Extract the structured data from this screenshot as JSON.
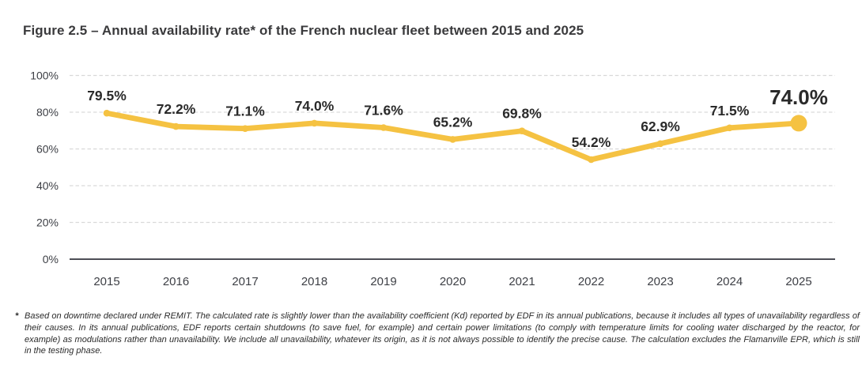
{
  "figure": {
    "title": "Figure 2.5 – Annual availability rate* of the French nuclear fleet between 2015 and 2025",
    "footnote_marker": "*",
    "footnote": "Based on downtime declared under REMIT. The calculated rate is slightly lower than the availability coefficient (Kd) reported by EDF in its annual publications, because it includes all types of unavailability regardless of their causes. In its annual publications, EDF reports certain shutdowns (to save fuel, for example) and certain power limitations (to comply with temperature limits for cooling water discharged by the reactor, for example) as modulations rather than unavailability. We include all unavailability, whatever its origin, as it is not always possible to identify the precise cause. The calculation excludes the Flamanville EPR, which is still in the testing phase."
  },
  "chart_data": {
    "type": "line",
    "title": "Annual availability rate of the French nuclear fleet between 2015 and 2025",
    "categories": [
      "2015",
      "2016",
      "2017",
      "2018",
      "2019",
      "2020",
      "2021",
      "2022",
      "2023",
      "2024",
      "2025"
    ],
    "values": [
      79.5,
      72.2,
      71.1,
      74.0,
      71.6,
      65.2,
      69.8,
      54.2,
      62.9,
      71.5,
      74.0
    ],
    "point_labels": [
      "79.5%",
      "72.2%",
      "71.1%",
      "74.0%",
      "71.6%",
      "65.2%",
      "69.8%",
      "54.2%",
      "62.9%",
      "71.5%",
      "74.0%"
    ],
    "y_ticks": [
      {
        "label": "0%",
        "value": 0
      },
      {
        "label": "20%",
        "value": 20
      },
      {
        "label": "40%",
        "value": 40
      },
      {
        "label": "60%",
        "value": 60
      },
      {
        "label": "80%",
        "value": 80
      },
      {
        "label": "100%",
        "value": 100
      }
    ],
    "ylim": [
      0,
      100
    ],
    "xlabel": "",
    "ylabel": "",
    "legend": "none",
    "grid": "horizontal-dashed",
    "highlight_last_point": true,
    "colors": {
      "line": "#F5C242",
      "point": "#F5C242",
      "data_label": "#2a2a2a",
      "tick_label": "#3e4046",
      "grid_line": "#d9d9d9",
      "axis_line": "#4d4e56"
    }
  }
}
